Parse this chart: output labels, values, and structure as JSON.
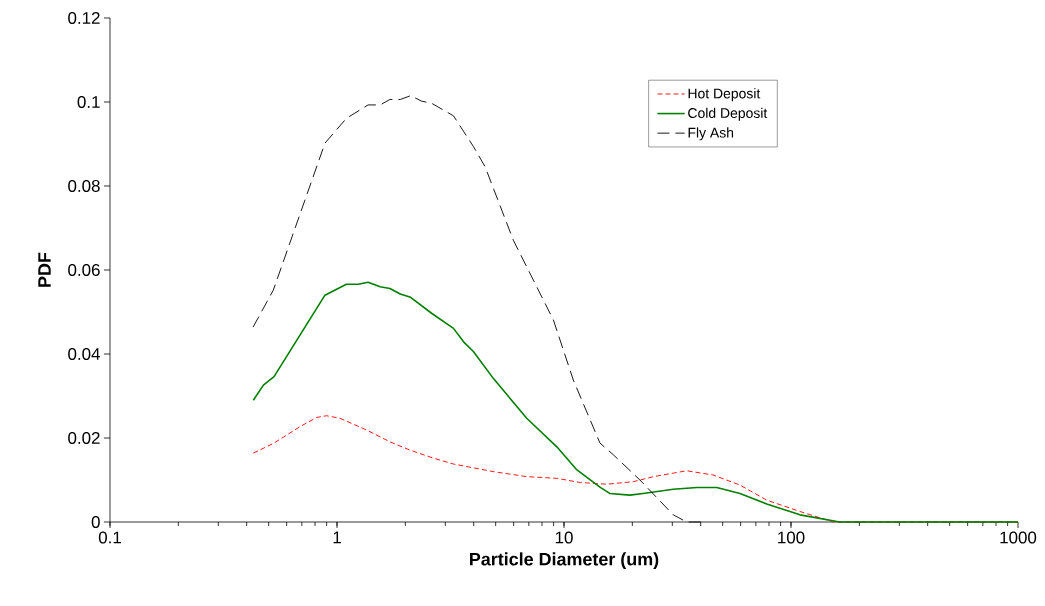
{
  "chart_data": {
    "type": "line",
    "xlabel": "Particle Diameter (um)",
    "ylabel": "PDF",
    "log": "x",
    "xlim": [
      0.1,
      1000
    ],
    "xticks": [
      0.1,
      1,
      10,
      100,
      1000
    ],
    "ylim": [
      0,
      0.12
    ],
    "yticks": [
      0,
      0.02,
      0.04,
      0.06,
      0.08,
      0.1,
      0.12
    ],
    "grid": false,
    "legend": "top right",
    "marker": "none",
    "series": [
      {
        "name": "Hot Deposit",
        "color": "#ff0000",
        "line_style": "dashed",
        "x": [
          0.428,
          0.524,
          0.687,
          0.814,
          0.9,
          1.03,
          1.35,
          1.71,
          2.1,
          2.66,
          3.26,
          4.88,
          6.85,
          9.3,
          11.8,
          15.4,
          20.2,
          24.8,
          34.7,
          45.3,
          59.6,
          78.2,
          109.5,
          154,
          1000
        ],
        "values": [
          0.0164,
          0.0187,
          0.0227,
          0.0249,
          0.0253,
          0.0247,
          0.0219,
          0.0191,
          0.0171,
          0.0152,
          0.0138,
          0.012,
          0.0108,
          0.0104,
          0.0094,
          0.009,
          0.0096,
          0.0108,
          0.0122,
          0.0112,
          0.0088,
          0.0052,
          0.0025,
          0,
          0
        ]
      },
      {
        "name": "Cold Deposit",
        "color": "#008000",
        "line_style": "solid",
        "x": [
          0.428,
          0.474,
          0.528,
          0.885,
          1.1,
          1.24,
          1.37,
          1.55,
          1.71,
          1.9,
          2.11,
          2.61,
          3.26,
          3.61,
          3.99,
          4.88,
          6.85,
          9.3,
          11.4,
          14.4,
          15.9,
          19.5,
          22.3,
          30.3,
          38.5,
          47.1,
          59.6,
          78.2,
          109.5,
          164,
          1000
        ],
        "values": [
          0.029,
          0.0326,
          0.0346,
          0.054,
          0.0566,
          0.0566,
          0.0571,
          0.056,
          0.0556,
          0.0543,
          0.0535,
          0.0497,
          0.0461,
          0.0429,
          0.0406,
          0.0342,
          0.0247,
          0.0179,
          0.0124,
          0.0083,
          0.0068,
          0.0064,
          0.0068,
          0.0078,
          0.0082,
          0.0082,
          0.0068,
          0.0043,
          0.0017,
          0,
          0
        ]
      },
      {
        "name": "Fly Ash",
        "color": "#000000",
        "line_style": "dashed",
        "x": [
          0.427,
          0.524,
          0.885,
          1.1,
          1.37,
          1.55,
          1.71,
          1.9,
          2.11,
          2.36,
          2.61,
          3.26,
          3.99,
          4.49,
          5.98,
          7.33,
          8.98,
          10.99,
          14.4,
          16.5,
          21.6,
          30.3,
          34.7,
          40
        ],
        "values": [
          0.0464,
          0.0552,
          0.0902,
          0.0961,
          0.0993,
          0.0993,
          0.1006,
          0.1006,
          0.1015,
          0.1002,
          0.0997,
          0.0967,
          0.0894,
          0.0846,
          0.0671,
          0.0576,
          0.0481,
          0.0338,
          0.0188,
          0.016,
          0.01,
          0.0017,
          0,
          0
        ]
      }
    ]
  }
}
